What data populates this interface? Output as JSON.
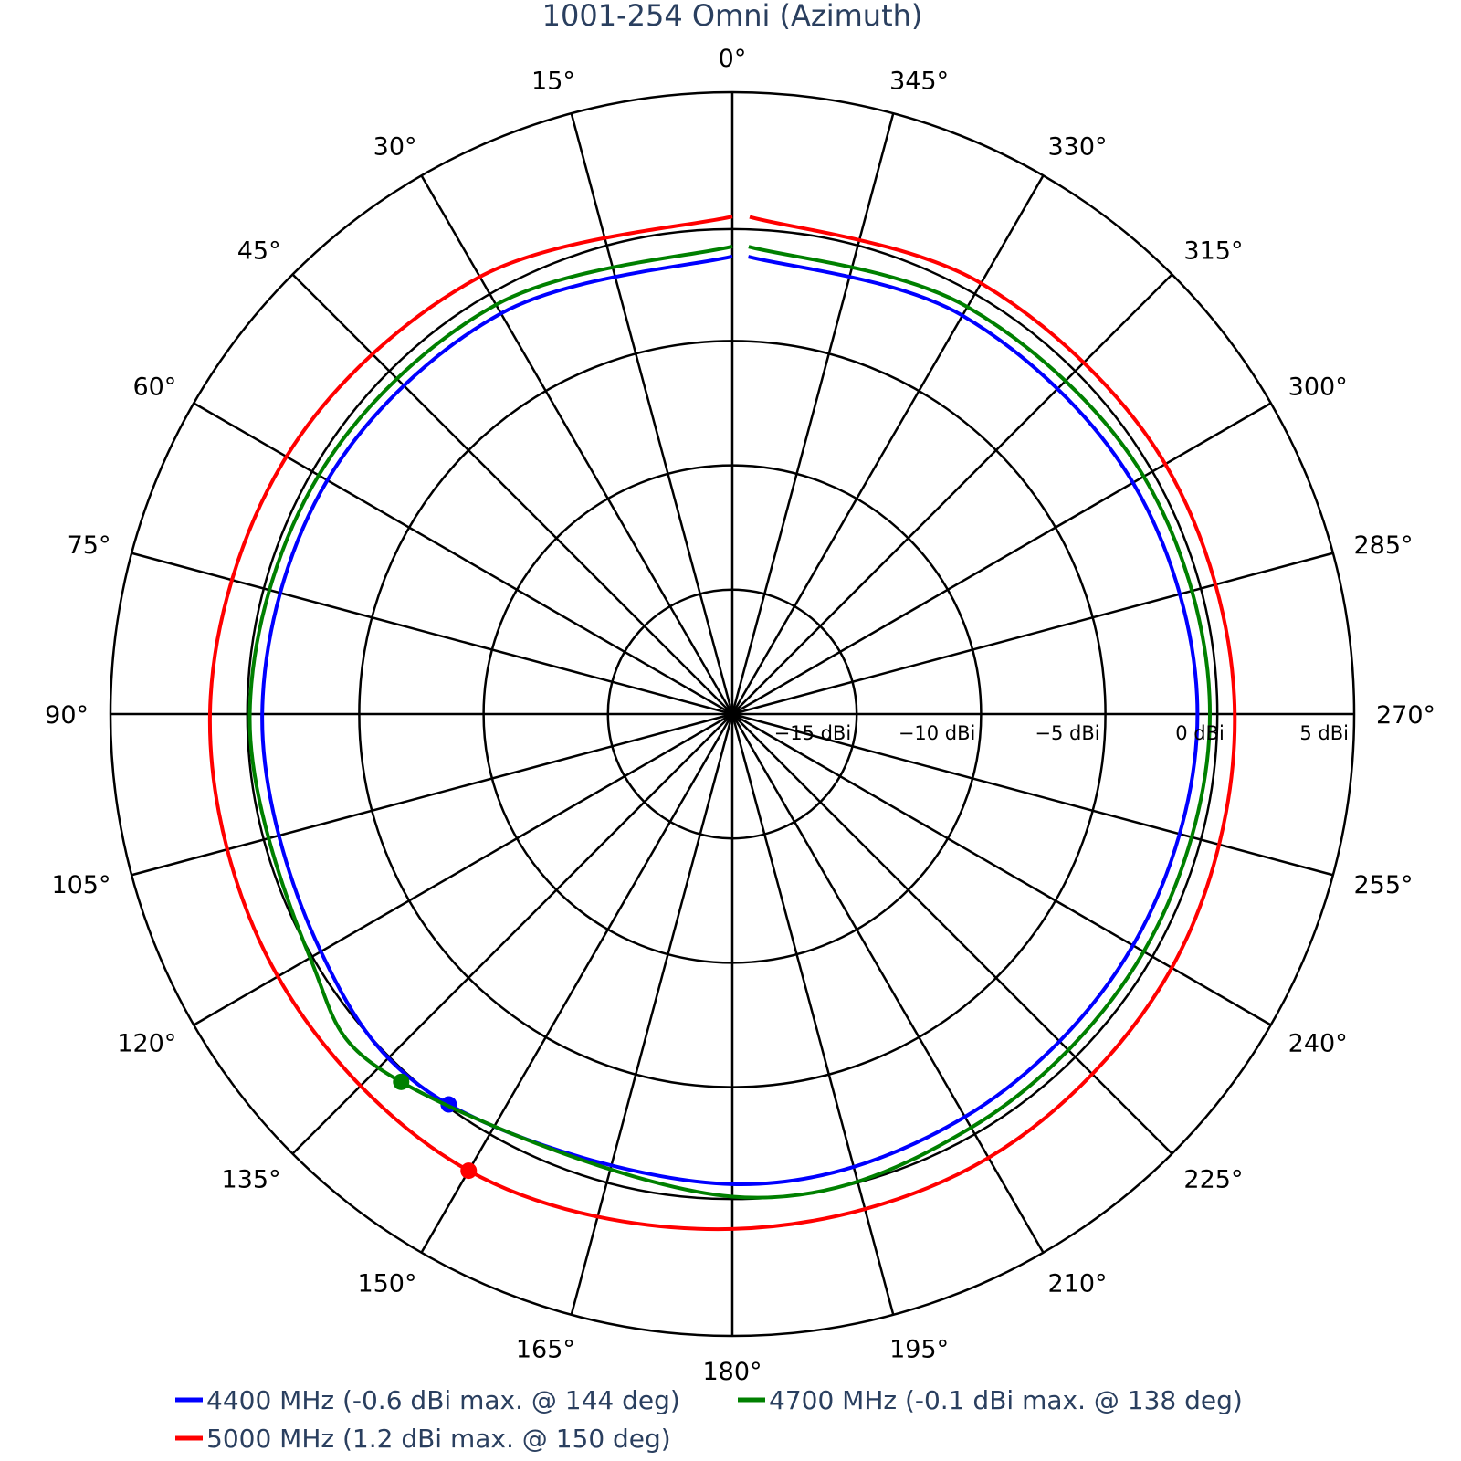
{
  "chart_data": {
    "type": "polar-line",
    "title": "1001-254 Omni (Azimuth)",
    "angular_axis": {
      "direction": "counterclockwise",
      "rotation": "0 at top",
      "unit": "°",
      "ticks": [
        0,
        15,
        30,
        45,
        60,
        75,
        90,
        105,
        120,
        135,
        150,
        165,
        180,
        195,
        210,
        225,
        240,
        255,
        270,
        285,
        300,
        315,
        330,
        345
      ]
    },
    "radial_axis": {
      "range": [
        -20,
        5
      ],
      "tickvals": [
        -15,
        -10,
        -5,
        0,
        5
      ],
      "ticktext": [
        "−15 dBi",
        "−10 dBi",
        "−5 dBi",
        "0 dBi",
        "5 dBi"
      ],
      "grid_circles": [
        -15,
        -10,
        -5,
        -0.5,
        5
      ]
    },
    "series": [
      {
        "name": "4400 MHz (-0.6 dBi max. @ 144 deg)",
        "color": "#0000ff",
        "theta": [
          0,
          30,
          60,
          90,
          120,
          144,
          180,
          210,
          240,
          270,
          300,
          330,
          358
        ],
        "r": [
          -1.6,
          -1.4,
          -1.2,
          -1.1,
          -0.9,
          -0.6,
          -1.1,
          -1.3,
          -1.4,
          -1.3,
          -1.4,
          -1.5,
          -1.6
        ],
        "marker": {
          "theta": 144,
          "r": -0.6
        }
      },
      {
        "name": "4700 MHz (-0.1 dBi max. @ 138 deg)",
        "color": "#008000",
        "theta": [
          0,
          30,
          60,
          90,
          120,
          138,
          180,
          210,
          240,
          270,
          300,
          330,
          358
        ],
        "r": [
          -1.2,
          -1.0,
          -0.8,
          -0.6,
          -0.4,
          -0.1,
          -0.6,
          -0.8,
          -0.9,
          -0.8,
          -0.9,
          -1.1,
          -1.2
        ],
        "marker": {
          "theta": 138,
          "r": -0.1
        }
      },
      {
        "name": "5000 MHz (1.2 dBi max. @ 150 deg)",
        "color": "#ff0000",
        "theta": [
          0,
          30,
          60,
          90,
          120,
          150,
          180,
          210,
          240,
          270,
          300,
          330,
          358
        ],
        "r": [
          0.0,
          0.3,
          0.7,
          1.0,
          1.1,
          1.2,
          0.7,
          0.6,
          0.4,
          0.2,
          0.1,
          0.0,
          0.0
        ],
        "marker": {
          "theta": 150,
          "r": 1.2
        }
      }
    ],
    "legend": {
      "position": "bottom-left"
    }
  }
}
